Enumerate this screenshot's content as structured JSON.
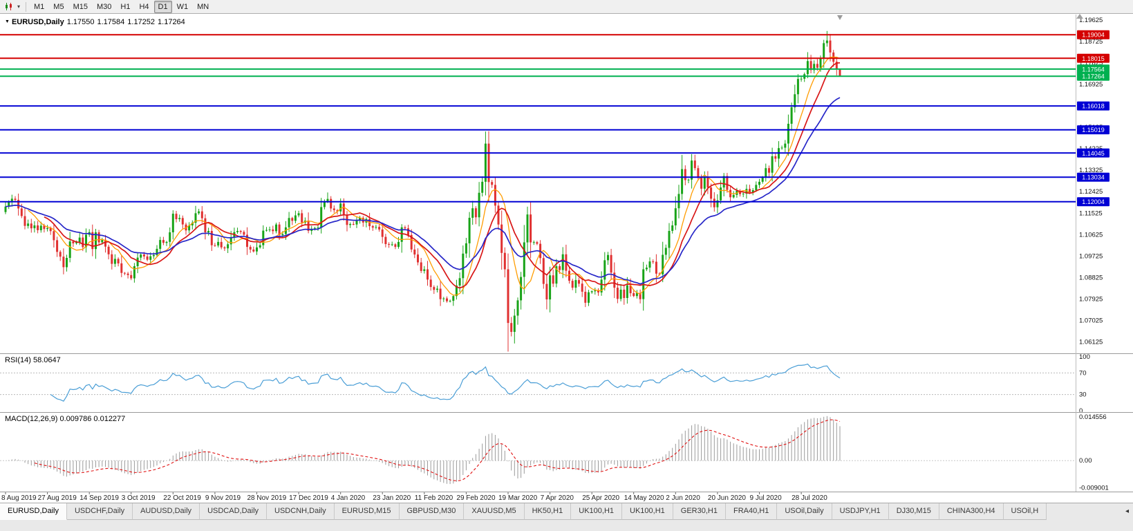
{
  "toolbar": {
    "timeframes": [
      "M1",
      "M5",
      "M15",
      "M30",
      "H1",
      "H4",
      "D1",
      "W1",
      "MN"
    ],
    "active_timeframe": "D1"
  },
  "chart": {
    "title": {
      "symbol": "EURUSD,Daily",
      "open": "1.17550",
      "high": "1.17584",
      "low": "1.17252",
      "close": "1.17264"
    },
    "price_axis_labels": [
      "1.19625",
      "1.18725",
      "1.17825",
      "1.16925",
      "1.16025",
      "1.15125",
      "1.14225",
      "1.13325",
      "1.12425",
      "1.11525",
      "1.10625",
      "1.09725",
      "1.08825",
      "1.07925",
      "1.07025",
      "1.06125"
    ],
    "price_range": {
      "top": 1.1985,
      "bottom": 1.0565
    },
    "hlines": [
      {
        "price": 1.19004,
        "label": "1.19004",
        "color": "#d40000"
      },
      {
        "price": 1.18015,
        "label": "1.18015",
        "color": "#d40000"
      },
      {
        "price": 1.17564,
        "label": "1.17564",
        "color": "#00b050"
      },
      {
        "price": 1.17264,
        "label": "1.17264",
        "color": "#00b050"
      },
      {
        "price": 1.16018,
        "label": "1.16018",
        "color": "#0000d4"
      },
      {
        "price": 1.15019,
        "label": "1.15019",
        "color": "#0000d4"
      },
      {
        "price": 1.14045,
        "label": "1.14045",
        "color": "#0000d4"
      },
      {
        "price": 1.13034,
        "label": "1.13034",
        "color": "#0000d4"
      },
      {
        "price": 1.12004,
        "label": "1.12004",
        "color": "#0000d4"
      }
    ],
    "first_open": 1.1157,
    "closes": [
      1.118,
      1.1199,
      1.1213,
      1.1208,
      1.1172,
      1.114,
      1.1099,
      1.1109,
      1.1089,
      1.1101,
      1.1081,
      1.11,
      1.1086,
      1.109,
      1.1077,
      1.1039,
      1.099,
      1.097,
      1.0926,
      1.0965,
      1.1034,
      1.1026,
      1.103,
      1.105,
      1.101,
      1.1062,
      1.1073,
      1.1002,
      1.1072,
      1.103,
      1.1041,
      1.1012,
      1.098,
      1.094,
      1.0961,
      1.0942,
      1.0902,
      1.0899,
      1.0893,
      1.0879,
      1.093,
      1.0966,
      1.0979,
      1.0971,
      1.0957,
      1.0972,
      1.0977,
      1.1003,
      1.104,
      1.1028,
      1.1032,
      1.1072,
      1.115,
      1.1127,
      1.1132,
      1.1105,
      1.108,
      1.1101,
      1.1112,
      1.1152,
      1.116,
      1.1131,
      1.1072,
      1.1078,
      1.1018,
      1.1017,
      1.1032,
      1.1009,
      1.1005,
      1.1022,
      1.1052,
      1.1073,
      1.1078,
      1.1074,
      1.1062,
      1.1011,
      1.1,
      1.0992,
      1.1009,
      1.1018,
      1.1079,
      1.1082,
      1.1084,
      1.1077,
      1.1105,
      1.106,
      1.1065,
      1.1093,
      1.1132,
      1.112,
      1.1143,
      1.1152,
      1.1113,
      1.1121,
      1.1078,
      1.1087,
      1.109,
      1.1092,
      1.1178,
      1.12,
      1.1212,
      1.1172,
      1.1165,
      1.116,
      1.1193,
      1.1144,
      1.1103,
      1.1107,
      1.1105,
      1.1122,
      1.1133,
      1.1113,
      1.1128,
      1.1098,
      1.1092,
      1.1095,
      1.1084,
      1.1053,
      1.1023,
      1.102,
      1.1022,
      1.1011,
      1.1032,
      1.1093,
      1.1089,
      1.1061,
      1.1,
      1.0979,
      1.0946,
      1.091,
      1.0917,
      1.0874,
      1.0843,
      1.0831,
      1.0836,
      1.0792,
      1.0795,
      1.0783,
      1.0785,
      1.0805,
      1.0849,
      1.088,
      1.0983,
      1.1026,
      1.1133,
      1.1173,
      1.1135,
      1.1238,
      1.1284,
      1.1444,
      1.1283,
      1.1271,
      1.1184,
      1.1105,
      1.0986,
      1.0917,
      1.0692,
      1.0655,
      1.0723,
      1.0787,
      1.0885,
      1.103,
      1.1147,
      1.103,
      1.1031,
      1.1024,
      1.0964,
      1.0856,
      1.0791,
      1.0892,
      1.0857,
      1.093,
      1.0914,
      1.098,
      1.0911,
      1.0869,
      1.084,
      1.0872,
      1.0857,
      1.0823,
      1.0777,
      1.0821,
      1.0825,
      1.0829,
      1.082,
      1.0874,
      1.0955,
      1.0977,
      1.0903,
      1.084,
      1.0793,
      1.0832,
      1.0797,
      1.085,
      1.0817,
      1.0805,
      1.0818,
      1.0792,
      1.0917,
      1.0924,
      1.095,
      1.0949,
      1.0899,
      1.0896,
      1.0978,
      1.1007,
      1.1078,
      1.1101,
      1.1173,
      1.1233,
      1.1337,
      1.1291,
      1.1293,
      1.1373,
      1.1341,
      1.13,
      1.1255,
      1.1304,
      1.126,
      1.1213,
      1.1177,
      1.1206,
      1.126,
      1.1308,
      1.125,
      1.1219,
      1.1229,
      1.1246,
      1.1232,
      1.1234,
      1.1254,
      1.1239,
      1.1249,
      1.1271,
      1.1284,
      1.1302,
      1.1341,
      1.1322,
      1.1391,
      1.1381,
      1.1425,
      1.1427,
      1.1444,
      1.1527,
      1.1596,
      1.1651,
      1.1715,
      1.1716,
      1.1735,
      1.179,
      1.1752,
      1.1778,
      1.1762,
      1.1803,
      1.1865,
      1.1876,
      1.1826,
      1.1787,
      1.1755,
      1.17264
    ],
    "wick_overrides": {
      "100": {
        "high": 1.1239
      },
      "137": {
        "low": 1.0777
      },
      "149": {
        "high": 1.1495
      },
      "157": {
        "low": 1.0636
      },
      "213": {
        "high": 1.14
      },
      "255": {
        "high": 1.1916
      },
      "259": {
        "high": 1.17584,
        "low": 1.17252
      }
    },
    "moving_averages": [
      {
        "name": "fast",
        "method": "sma",
        "period": 8,
        "color": "#ff9c00",
        "width": 1.3
      },
      {
        "name": "medium",
        "method": "sma",
        "period": 13,
        "color": "#d81616",
        "width": 1.7
      },
      {
        "name": "slow",
        "method": "ema",
        "period": 26,
        "color": "#2626c8",
        "width": 1.7
      }
    ],
    "candle_up_color": "#18a318",
    "candle_down_color": "#e03030"
  },
  "rsi": {
    "label": "RSI(14) 58.0647",
    "period": 14,
    "levels": [
      70,
      30
    ],
    "axis_labels": [
      "100",
      "70",
      "30",
      "0"
    ],
    "color": "#4a9ed6"
  },
  "macd": {
    "label": "MACD(12,26,9) 0.009786 0.012277",
    "fast": 12,
    "slow": 26,
    "signal": 9,
    "axis_labels": [
      "0.014556",
      "0.00",
      "-0.009001"
    ],
    "range": {
      "top": 0.0152,
      "bottom": -0.0096
    },
    "histogram_color": "#9a9a9a",
    "signal_color": "#e01010"
  },
  "date_axis": [
    "8 Aug 2019",
    "27 Aug 2019",
    "14 Sep 2019",
    "3 Oct 2019",
    "22 Oct 2019",
    "9 Nov 2019",
    "28 Nov 2019",
    "17 Dec 2019",
    "4 Jan 2020",
    "23 Jan 2020",
    "11 Feb 2020",
    "29 Feb 2020",
    "19 Mar 2020",
    "7 Apr 2020",
    "25 Apr 2020",
    "14 May 2020",
    "2 Jun 2020",
    "20 Jun 2020",
    "9 Jul 2020",
    "28 Jul 2020"
  ],
  "tab_bar": {
    "active_index": 0,
    "scroll_icon": "◂",
    "tabs": [
      "EURUSD,Daily",
      "USDCHF,Daily",
      "AUDUSD,Daily",
      "USDCAD,Daily",
      "USDCNH,Daily",
      "EURUSD,M15",
      "GBPUSD,M30",
      "XAUUSD,M5",
      "HK50,H1",
      "UK100,H1",
      "UK100,H1",
      "GER30,H1",
      "FRA40,H1",
      "USOil,Daily",
      "USDJPY,H1",
      "DJ30,M15",
      "CHINA300,H4",
      "USOil,H"
    ]
  }
}
